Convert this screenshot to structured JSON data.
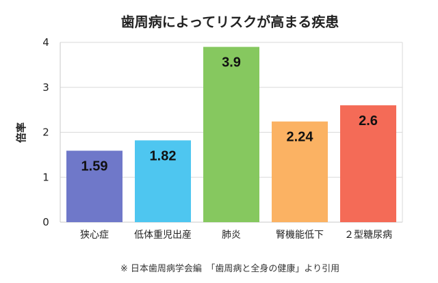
{
  "chart_data": {
    "type": "bar",
    "title": "歯周病によってリスクが高まる疾患",
    "ylabel": "倍率",
    "xlabel": "",
    "ylim": [
      0,
      4
    ],
    "yticks": [
      "0",
      "1",
      "2",
      "3",
      "4"
    ],
    "grid": true,
    "categories": [
      "狭心症",
      "低体重児出産",
      "肺炎",
      "腎機能低下",
      "２型糖尿病"
    ],
    "values": [
      1.59,
      1.82,
      3.9,
      2.24,
      2.6
    ],
    "value_labels": [
      "1.59",
      "1.82",
      "3.9",
      "2.24",
      "2.6"
    ],
    "colors": [
      "#6f78c9",
      "#4ec6f0",
      "#86c85f",
      "#fbb263",
      "#f46b57"
    ],
    "source_note": "※ 日本歯周病学会編　「歯周病と全身の健康」より引用"
  }
}
